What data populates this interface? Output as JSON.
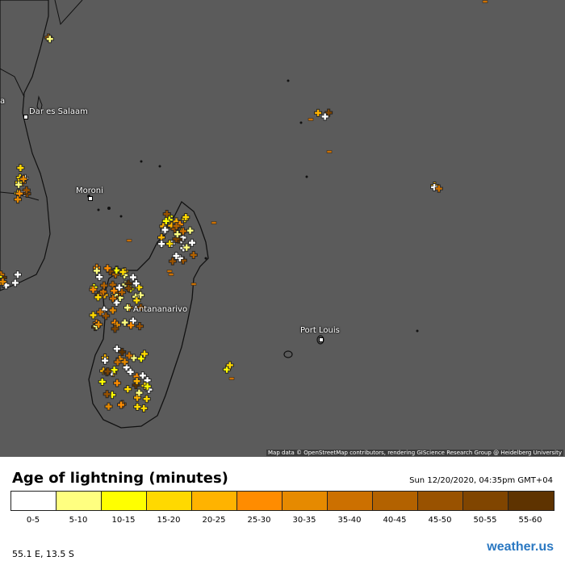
{
  "map": {
    "cities": [
      {
        "name": "Dar es Salaam"
      },
      {
        "name": "Moroni"
      },
      {
        "name": "Antananarivo"
      },
      {
        "name": "Port Louis"
      }
    ],
    "edge_label": "a",
    "attribution": "Map data © OpenStreetMap contributors, rendering GIScience Research Group @ Heidelberg University",
    "background_color": "#5b5b5b",
    "land_outline_color": "#111111"
  },
  "legend": {
    "title": "Age of lightning (minutes)",
    "timestamp": "Sun 12/20/2020, 04:35pm GMT+04",
    "bins": [
      {
        "label": "0-5",
        "color": "#ffffff"
      },
      {
        "label": "5-10",
        "color": "#ffff80"
      },
      {
        "label": "10-15",
        "color": "#ffff00"
      },
      {
        "label": "15-20",
        "color": "#ffd900"
      },
      {
        "label": "20-25",
        "color": "#ffb300"
      },
      {
        "label": "25-30",
        "color": "#ff8c00"
      },
      {
        "label": "30-35",
        "color": "#e68a00"
      },
      {
        "label": "35-40",
        "color": "#cc7000"
      },
      {
        "label": "40-45",
        "color": "#b36200"
      },
      {
        "label": "45-50",
        "color": "#995200"
      },
      {
        "label": "50-55",
        "color": "#804500"
      },
      {
        "label": "55-60",
        "color": "#5e3300"
      }
    ]
  },
  "cursor_coords": "55.1 E, 13.5 S",
  "brand": "weather.us"
}
